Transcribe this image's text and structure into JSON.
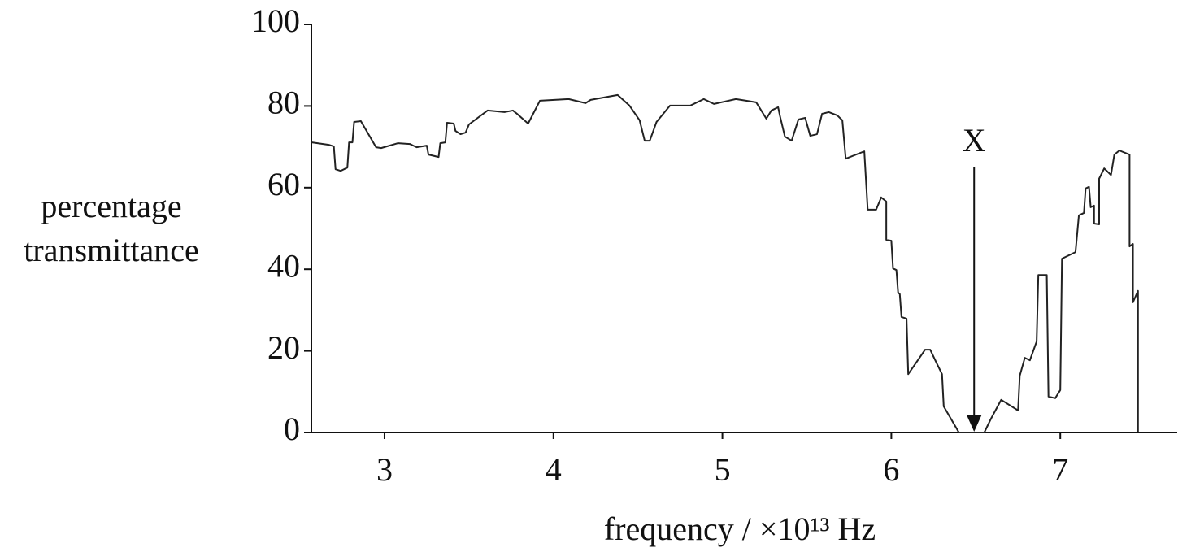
{
  "chart_data": {
    "type": "line",
    "x_label": "frequency / ×10¹³ Hz",
    "y_label": [
      "percentage",
      "transmittance"
    ],
    "xlim": [
      2.567,
      7.692
    ],
    "xticks": [
      3,
      4,
      5,
      6,
      7
    ],
    "ylim": [
      0,
      100
    ],
    "yticks": [
      0,
      20,
      40,
      60,
      80,
      100
    ],
    "color": "#222",
    "annotation": {
      "text": "X",
      "x": 6.49
    },
    "x": [
      2.57,
      2.67,
      2.7,
      2.71,
      2.74,
      2.78,
      2.79,
      2.81,
      2.82,
      2.86,
      2.95,
      2.98,
      3.08,
      3.15,
      3.19,
      3.25,
      3.26,
      3.32,
      3.33,
      3.36,
      3.37,
      3.41,
      3.42,
      3.45,
      3.48,
      3.5,
      3.61,
      3.71,
      3.76,
      3.79,
      3.85,
      3.92,
      4.09,
      4.19,
      4.22,
      4.38,
      4.45,
      4.51,
      4.54,
      4.57,
      4.61,
      4.69,
      4.81,
      4.89,
      4.95,
      5.08,
      5.2,
      5.26,
      5.29,
      5.33,
      5.34,
      5.37,
      5.41,
      5.45,
      5.49,
      5.52,
      5.56,
      5.59,
      5.63,
      5.68,
      5.71,
      5.73,
      5.84,
      5.86,
      5.91,
      5.94,
      5.97,
      5.97,
      6.0,
      6.01,
      6.03,
      6.04,
      6.05,
      6.06,
      6.09,
      6.1,
      6.2,
      6.23,
      6.26,
      6.3,
      6.31,
      6.4,
      6.55,
      6.59,
      6.65,
      6.75,
      6.76,
      6.79,
      6.82,
      6.86,
      6.87,
      6.92,
      6.93,
      6.97,
      7.0,
      7.01,
      7.09,
      7.11,
      7.14,
      7.15,
      7.17,
      7.18,
      7.2,
      7.2,
      7.23,
      7.23,
      7.26,
      7.3,
      7.32,
      7.35,
      7.41,
      7.41,
      7.43,
      7.43,
      7.46,
      7.46
    ],
    "values": [
      71.1,
      70.5,
      70.1,
      64.5,
      64.1,
      64.9,
      71.1,
      71.1,
      76.1,
      76.3,
      69.9,
      69.7,
      70.9,
      70.7,
      69.9,
      70.3,
      68.1,
      67.5,
      70.9,
      71.1,
      75.9,
      75.7,
      73.9,
      73.1,
      73.5,
      75.5,
      78.9,
      78.5,
      78.9,
      77.9,
      75.7,
      81.3,
      81.7,
      80.7,
      81.5,
      82.7,
      80.1,
      76.5,
      71.5,
      71.5,
      76.1,
      80.1,
      80.1,
      81.7,
      80.5,
      81.7,
      80.9,
      76.9,
      78.9,
      79.7,
      77.7,
      72.5,
      71.5,
      76.7,
      77.1,
      72.7,
      73.1,
      78.1,
      78.5,
      77.7,
      76.5,
      67.1,
      68.9,
      54.6,
      54.6,
      57.6,
      56.6,
      47.2,
      47.0,
      40.2,
      39.8,
      34.3,
      33.9,
      28.3,
      27.9,
      14.3,
      20.3,
      20.3,
      17.7,
      14.3,
      6.4,
      0,
      0,
      3.4,
      8.0,
      5.4,
      13.9,
      18.3,
      17.7,
      22.3,
      38.6,
      38.6,
      8.8,
      8.4,
      10.4,
      42.6,
      44.2,
      53.2,
      53.8,
      59.8,
      60.2,
      55.2,
      55.6,
      51.2,
      51.0,
      62.2,
      64.7,
      63.1,
      68.1,
      69.1,
      68.1,
      45.6,
      46.2,
      31.9,
      34.7,
      0
    ]
  }
}
